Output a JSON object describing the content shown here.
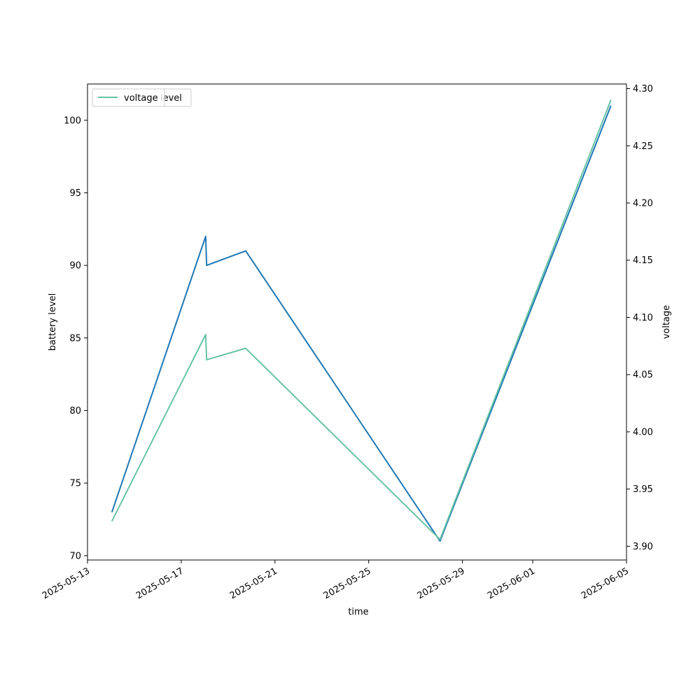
{
  "chart_data": {
    "type": "line",
    "title": "",
    "xlabel": "time",
    "ylabel_left": "battery level",
    "ylabel_right": "voltage",
    "x_ticks": [
      "2025-05-13",
      "2025-05-17",
      "2025-05-21",
      "2025-05-25",
      "2025-05-29",
      "2025-06-01",
      "2025-06-05"
    ],
    "y_left_ticks": [
      "70",
      "75",
      "80",
      "85",
      "90",
      "95",
      "100"
    ],
    "y_right_ticks": [
      "3.90",
      "3.95",
      "4.00",
      "4.05",
      "4.10",
      "4.15",
      "4.20",
      "4.25",
      "4.30"
    ],
    "x_range": [
      "2025-05-13T00:00",
      "2025-06-05T00:00"
    ],
    "y_left_range": [
      69.7,
      102.5
    ],
    "y_right_range": [
      3.888,
      4.304
    ],
    "legend": {
      "placement": "upper-left",
      "entries": [
        {
          "label": "level",
          "color": "#1f77b4"
        },
        {
          "label": "voltage",
          "color": "#66c2a5"
        }
      ]
    },
    "series": [
      {
        "name": "level",
        "axis": "left",
        "color": "#1f77b4",
        "points": [
          {
            "x": "2025-05-14T01:00",
            "y": 73
          },
          {
            "x": "2025-05-18T01:00",
            "y": 92
          },
          {
            "x": "2025-05-18T02:00",
            "y": 90
          },
          {
            "x": "2025-05-19T18:00",
            "y": 91
          },
          {
            "x": "2025-05-28T01:00",
            "y": 71
          },
          {
            "x": "2025-06-04T08:00",
            "y": 101
          }
        ]
      },
      {
        "name": "voltage",
        "axis": "right",
        "color": "#66c2a5",
        "points": [
          {
            "x": "2025-05-14T01:00",
            "y": 3.922
          },
          {
            "x": "2025-05-18T01:00",
            "y": 4.085
          },
          {
            "x": "2025-05-18T02:00",
            "y": 4.063
          },
          {
            "x": "2025-05-19T18:00",
            "y": 4.073
          },
          {
            "x": "2025-05-28T01:00",
            "y": 3.906
          },
          {
            "x": "2025-06-04T08:00",
            "y": 4.29
          }
        ]
      }
    ]
  }
}
